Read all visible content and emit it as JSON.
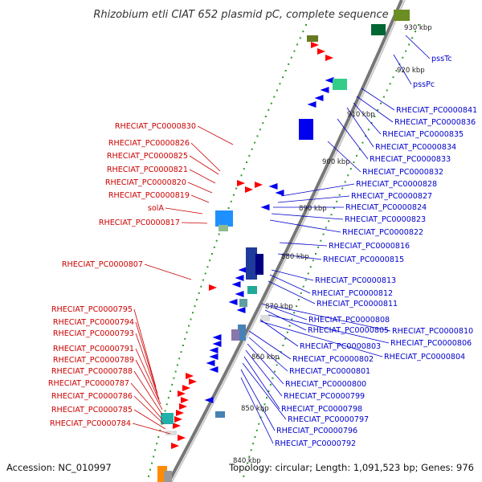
{
  "title": "Rhizobium etli CIAT 652 plasmid pC, complete sequence",
  "accession": "Accession: NC_010997",
  "topology": "Topology: circular; Length: 1,091,523 bp; Genes: 976",
  "colors": {
    "reverse_label": "#cc0000",
    "forward_label": "#0000cc",
    "backbone": "#777777",
    "reverse_gene": "#ff0000",
    "forward_gene": "#0000ee",
    "cog_track": "#2e9a2e"
  },
  "kbp_ticks": [
    "930 kbp",
    "920 kbp",
    "910 kbp",
    "900 kbp",
    "890 kbp",
    "880 kbp",
    "870 kbp",
    "860 kbp",
    "850 kbp",
    "840 kbp"
  ],
  "left_labels": [
    "RHECIAT_PC0000830",
    "RHECIAT_PC0000826",
    "RHECIAT_PC0000825",
    "RHECIAT_PC0000821",
    "RHECIAT_PC0000820",
    "RHECIAT_PC0000819",
    "solA",
    "RHECIAT_PC0000817",
    "RHECIAT_PC0000807",
    "RHECIAT_PC0000795",
    "RHECIAT_PC0000794",
    "RHECIAT_PC0000793",
    "RHECIAT_PC0000791",
    "RHECIAT_PC0000789",
    "RHECIAT_PC0000788",
    "RHECIAT_PC0000787",
    "RHECIAT_PC0000786",
    "RHECIAT_PC0000785",
    "RHECIAT_PC0000784"
  ],
  "right_labels": [
    "pssTc",
    "pssPc",
    "RHECIAT_PC0000841",
    "RHECIAT_PC0000836",
    "RHECIAT_PC0000835",
    "RHECIAT_PC0000834",
    "RHECIAT_PC0000833",
    "RHECIAT_PC0000832",
    "RHECIAT_PC0000828",
    "RHECIAT_PC0000827",
    "RHECIAT_PC0000824",
    "RHECIAT_PC0000823",
    "RHECIAT_PC0000822",
    "RHECIAT_PC0000816",
    "RHECIAT_PC0000815",
    "RHECIAT_PC0000813",
    "RHECIAT_PC0000812",
    "RHECIAT_PC0000811",
    "RHECIAT_PC0000808",
    "RHECIAT_PC0000810",
    "RHECIAT_PC0000805",
    "RHECIAT_PC0000806",
    "RHECIAT_PC0000803",
    "RHECIAT_PC0000804",
    "RHECIAT_PC0000802",
    "RHECIAT_PC0000801",
    "RHECIAT_PC0000800",
    "RHECIAT_PC0000799",
    "RHECIAT_PC0000798",
    "RHECIAT_PC0000797",
    "RHECIAT_PC0000796",
    "RHECIAT_PC0000792"
  ]
}
